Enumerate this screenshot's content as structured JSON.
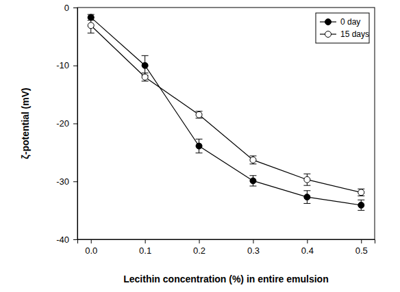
{
  "chart_data": {
    "type": "line",
    "x_label": "Lecithin concentration (%) in entire emulsion",
    "y_label": "ζ-potential (mV)",
    "x": [
      0,
      0.1,
      0.2,
      0.3,
      0.4,
      0.5
    ],
    "series": [
      {
        "name": "0 day",
        "color": "#000000",
        "marker": "filled-circle",
        "line_style": "solid",
        "values": [
          -1.7,
          -10.0,
          -23.9,
          -29.9,
          -32.7,
          -34.1
        ],
        "errors": [
          0.5,
          1.7,
          1.2,
          0.9,
          1.1,
          0.9
        ]
      },
      {
        "name": "15 days",
        "color": "#000000",
        "marker": "open-circle",
        "line_style": "solid",
        "values": [
          -3.1,
          -12.0,
          -18.5,
          -26.3,
          -29.7,
          -31.9
        ],
        "errors": [
          1.3,
          0.7,
          0.6,
          0.7,
          1.0,
          0.6
        ]
      }
    ],
    "xlim": [
      -0.025,
      0.525
    ],
    "xticks": [
      {
        "value": 0,
        "label": "0.0"
      },
      0.1,
      0.2,
      0.3,
      0.4,
      0.5
    ],
    "ylim": [
      -40,
      0
    ],
    "yticks": [
      -40,
      -30,
      -20,
      -10,
      0
    ],
    "grid": false,
    "legend": "upper-right"
  }
}
